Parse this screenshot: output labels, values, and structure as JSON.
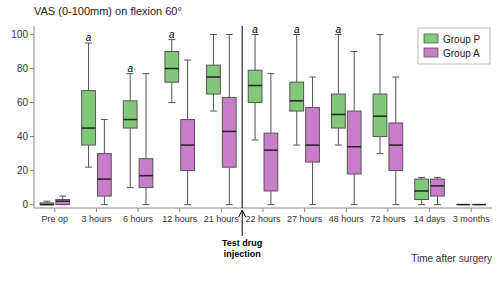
{
  "chart_data": {
    "type": "box",
    "title": "VAS (0-100mm) on flexion 60°",
    "x_label": "Time after surgery",
    "categories": [
      "Pre op",
      "3 hours",
      "6 hours",
      "12 hours",
      "21 hours",
      "22 hours",
      "27 hours",
      "48 hours",
      "72 hours",
      "14 days",
      "3 months"
    ],
    "series": [
      {
        "name": "Group P",
        "color": "#82C87A",
        "values": [
          {
            "whislo": 0,
            "q1": 0,
            "med": 0,
            "q3": 1,
            "whishi": 2
          },
          {
            "whislo": 22,
            "q1": 35,
            "med": 45,
            "q3": 67,
            "whishi": 95
          },
          {
            "whislo": 10,
            "q1": 45,
            "med": 50,
            "q3": 61,
            "whishi": 77
          },
          {
            "whislo": 60,
            "q1": 72,
            "med": 80,
            "q3": 90,
            "whishi": 97
          },
          {
            "whislo": 55,
            "q1": 65,
            "med": 75,
            "q3": 82,
            "whishi": 100
          },
          {
            "whislo": 38,
            "q1": 60,
            "med": 70,
            "q3": 79,
            "whishi": 100
          },
          {
            "whislo": 35,
            "q1": 55,
            "med": 61,
            "q3": 72,
            "whishi": 100
          },
          {
            "whislo": 35,
            "q1": 45,
            "med": 53,
            "q3": 65,
            "whishi": 100
          },
          {
            "whislo": 30,
            "q1": 40,
            "med": 52,
            "q3": 65,
            "whishi": 100
          },
          {
            "whislo": 0,
            "q1": 3,
            "med": 8,
            "q3": 15,
            "whishi": 16
          },
          {
            "whislo": 0,
            "q1": 0,
            "med": 0,
            "q3": 0,
            "whishi": 0
          }
        ]
      },
      {
        "name": "Group A",
        "color": "#C87DC8",
        "values": [
          {
            "whislo": 0,
            "q1": 0,
            "med": 2,
            "q3": 3,
            "whishi": 5
          },
          {
            "whislo": 0,
            "q1": 5,
            "med": 15,
            "q3": 30,
            "whishi": 50
          },
          {
            "whislo": 0,
            "q1": 10,
            "med": 17,
            "q3": 27,
            "whishi": 77
          },
          {
            "whislo": 0,
            "q1": 20,
            "med": 35,
            "q3": 50,
            "whishi": 85
          },
          {
            "whislo": 0,
            "q1": 22,
            "med": 43,
            "q3": 63,
            "whishi": 100
          },
          {
            "whislo": 0,
            "q1": 8,
            "med": 32,
            "q3": 42,
            "whishi": 77
          },
          {
            "whislo": 0,
            "q1": 25,
            "med": 35,
            "q3": 57,
            "whishi": 75
          },
          {
            "whislo": 0,
            "q1": 18,
            "med": 34,
            "q3": 55,
            "whishi": 90
          },
          {
            "whislo": 0,
            "q1": 20,
            "med": 35,
            "q3": 48,
            "whishi": 75
          },
          {
            "whislo": 0,
            "q1": 5,
            "med": 11,
            "q3": 15,
            "whishi": 16
          },
          {
            "whislo": 0,
            "q1": 0,
            "med": 0,
            "q3": 0,
            "whishi": 0
          }
        ]
      }
    ],
    "ylim": [
      -2,
      105
    ],
    "yticks": [
      0,
      20,
      40,
      60,
      80,
      100
    ],
    "grid": false,
    "legend": "upper right",
    "annotations": [
      {
        "text": "a",
        "series": "Group P",
        "categories": [
          "3 hours",
          "6 hours",
          "12 hours",
          "22 hours",
          "27 hours",
          "48 hours"
        ]
      },
      {
        "text": "Test drug\ninjection",
        "x": 4.5
      }
    ]
  }
}
